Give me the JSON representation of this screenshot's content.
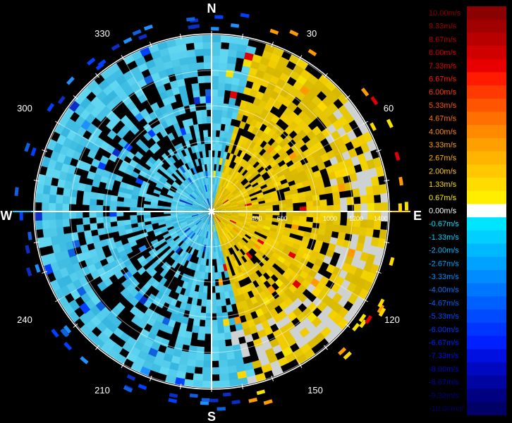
{
  "compass": {
    "north": "N",
    "east": "E",
    "south": "S",
    "west": "W"
  },
  "azimuth_labels": [
    "30",
    "60",
    "120",
    "150",
    "210",
    "240",
    "300",
    "330"
  ],
  "range_labels": [
    "400",
    "600",
    "1000",
    "1200",
    "1400"
  ],
  "legend": {
    "labels": [
      "10.00m/s",
      "9.33m/s",
      "8.67m/s",
      "8.00m/s",
      "7.33m/s",
      "6.67m/s",
      "6.00m/s",
      "5.33m/s",
      "4.67m/s",
      "4.00m/s",
      "3.33m/s",
      "2.67m/s",
      "2.00m/s",
      "1.33m/s",
      "0.67m/s",
      "0.00m/s",
      "-0.67m/s",
      "-1.33m/s",
      "-2.00m/s",
      "-2.67m/s",
      "-3.33m/s",
      "-4.00m/s",
      "-4.67m/s",
      "-5.33m/s",
      "-6.00m/s",
      "-6.67m/s",
      "-7.33m/s",
      "-8.00m/s",
      "-8.67m/s",
      "-9.33m/s",
      "-10.00m/s"
    ],
    "colors": [
      "#8b0000",
      "#a00000",
      "#b80000",
      "#d00000",
      "#e80000",
      "#ff1a00",
      "#ff3a00",
      "#ff5500",
      "#ff7000",
      "#ff8a00",
      "#ffa000",
      "#ffb400",
      "#ffc800",
      "#ffdc00",
      "#ffee00",
      "#ffffff",
      "#00e5ff",
      "#00cfff",
      "#00b8ff",
      "#00a2ff",
      "#008cff",
      "#0076ff",
      "#0060ff",
      "#004aff",
      "#0034ff",
      "#0020ff",
      "#0010e0",
      "#0008c0",
      "#0004a0",
      "#000080",
      "#000066"
    ]
  }
}
